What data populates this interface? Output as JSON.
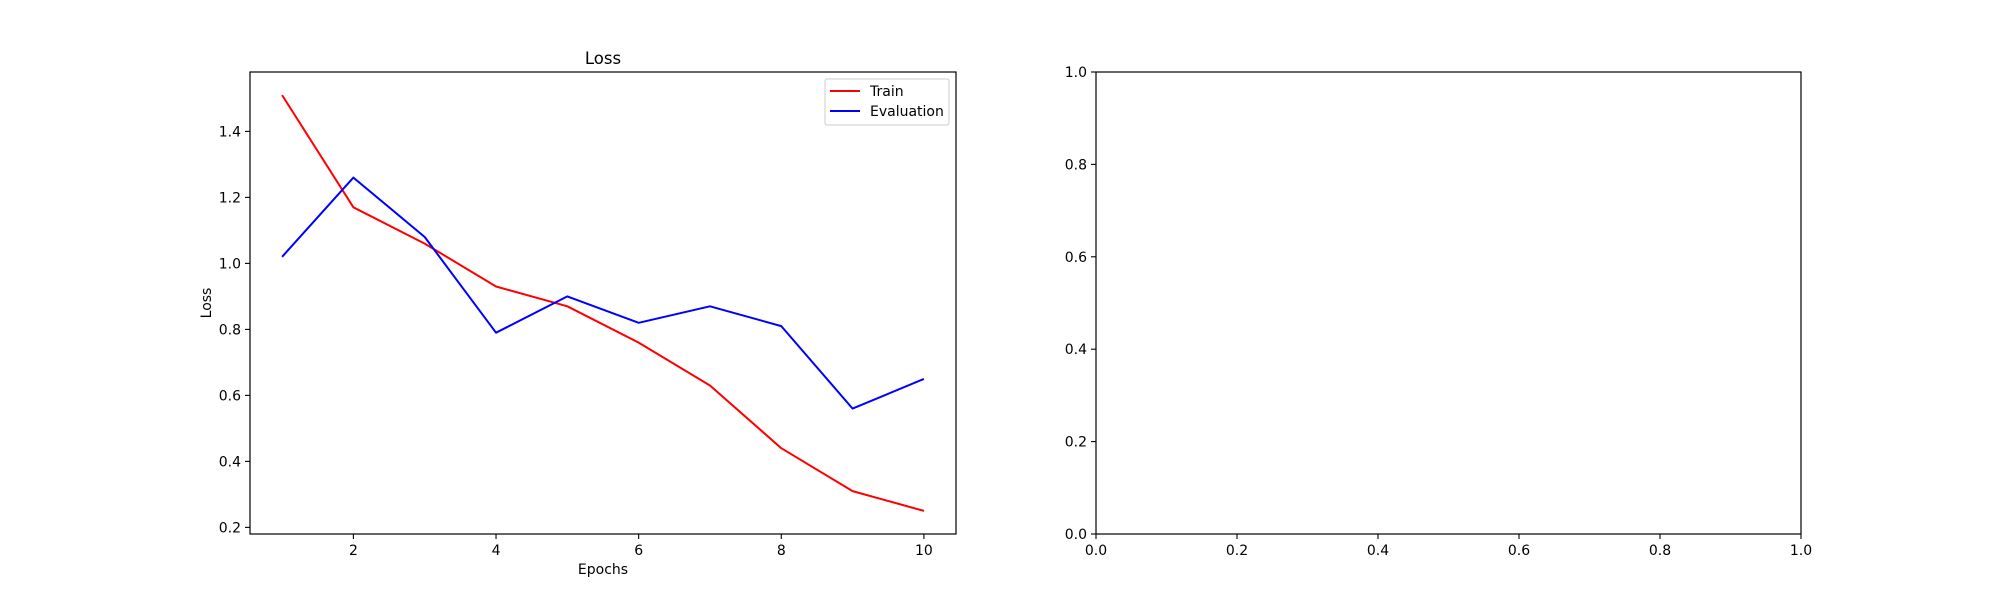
{
  "chart_data": [
    {
      "type": "line",
      "title": "Loss",
      "xlabel": "Epochs",
      "ylabel": "Loss",
      "xlim": [
        0.55,
        10.45
      ],
      "ylim": [
        0.18,
        1.58
      ],
      "xticks": [
        2,
        4,
        6,
        8,
        10
      ],
      "yticks": [
        0.2,
        0.4,
        0.6,
        0.8,
        1.0,
        1.2,
        1.4
      ],
      "x": [
        1,
        2,
        3,
        4,
        5,
        6,
        7,
        8,
        9,
        10
      ],
      "series": [
        {
          "name": "Train",
          "color": "#ff0000",
          "values": [
            1.51,
            1.17,
            1.06,
            0.93,
            0.87,
            0.76,
            0.63,
            0.44,
            0.31,
            0.25
          ]
        },
        {
          "name": "Evaluation",
          "color": "#0000ff",
          "values": [
            1.02,
            1.26,
            1.08,
            0.79,
            0.9,
            0.82,
            0.87,
            0.81,
            0.56,
            0.65
          ]
        }
      ],
      "legend": "upper right",
      "grid": false
    },
    {
      "type": "line",
      "title": "",
      "xlabel": "",
      "ylabel": "",
      "xlim": [
        0.0,
        1.0
      ],
      "ylim": [
        0.0,
        1.0
      ],
      "xticks": [
        0.0,
        0.2,
        0.4,
        0.6,
        0.8,
        1.0
      ],
      "yticks": [
        0.0,
        0.2,
        0.4,
        0.6,
        0.8,
        1.0
      ],
      "series": [],
      "grid": false
    }
  ]
}
